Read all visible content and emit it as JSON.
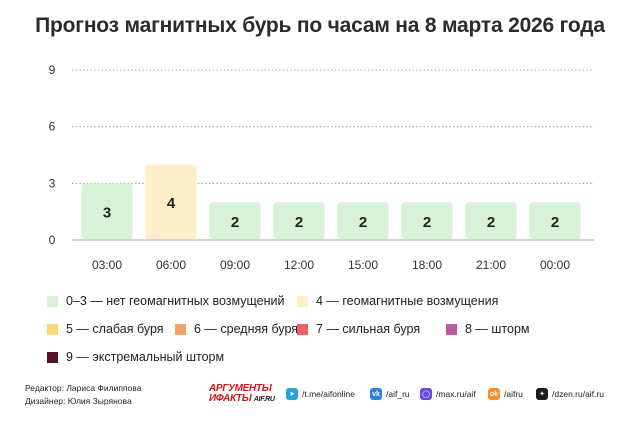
{
  "title": "Прогноз магнитных бурь по часам на 8 марта 2026 года",
  "chart_data": {
    "type": "bar",
    "categories": [
      "03:00",
      "06:00",
      "09:00",
      "12:00",
      "15:00",
      "18:00",
      "21:00",
      "00:00"
    ],
    "values": [
      3,
      4,
      2,
      2,
      2,
      2,
      2,
      2
    ],
    "bar_colors": [
      "#d7f2d6",
      "#fcefc9",
      "#d7f2d6",
      "#d7f2d6",
      "#d7f2d6",
      "#d7f2d6",
      "#d7f2d6",
      "#d7f2d6"
    ],
    "yticks": [
      0,
      3,
      6,
      9
    ],
    "ylim": [
      0,
      9
    ],
    "grid": "dotted horizontal"
  },
  "legend": [
    {
      "label": "0–3 — нет геомагнитных возмущений",
      "color": "#d7f2d6"
    },
    {
      "label": "4 — геомагнитные возмущения",
      "color": "#fcefc9"
    },
    {
      "label": "5 — слабая буря",
      "color": "#f8d77c"
    },
    {
      "label": "6 — средняя буря",
      "color": "#f3a36a"
    },
    {
      "label": "7 — сильная буря",
      "color": "#ea6464"
    },
    {
      "label": "8 — шторм",
      "color": "#bd5c9a"
    },
    {
      "label": "9 — экстремальный шторм",
      "color": "#5a0d26"
    }
  ],
  "footer": {
    "editor": "Редактор: Лариса Филиппова",
    "designer": "Дизайнер: Юлия Зырянова",
    "logo_line1": "АРГУМЕНТЫ",
    "logo_line2": "ИФАКТЫ",
    "logo_domain": "AIF.RU",
    "social": [
      {
        "text": "/t.me/aifonline",
        "icon": "telegram-icon",
        "color": "#2aa0da"
      },
      {
        "text": "/aif_ru",
        "icon": "vk-icon",
        "color": "#2f7fe0"
      },
      {
        "text": "/max.ru/aif",
        "icon": "max-icon",
        "color": "#6a4be0"
      },
      {
        "text": "/aifru",
        "icon": "ok-icon",
        "color": "#f39224"
      },
      {
        "text": "/dzen.ru/aif.ru",
        "icon": "dzen-icon",
        "color": "#1c1c1c"
      }
    ]
  }
}
